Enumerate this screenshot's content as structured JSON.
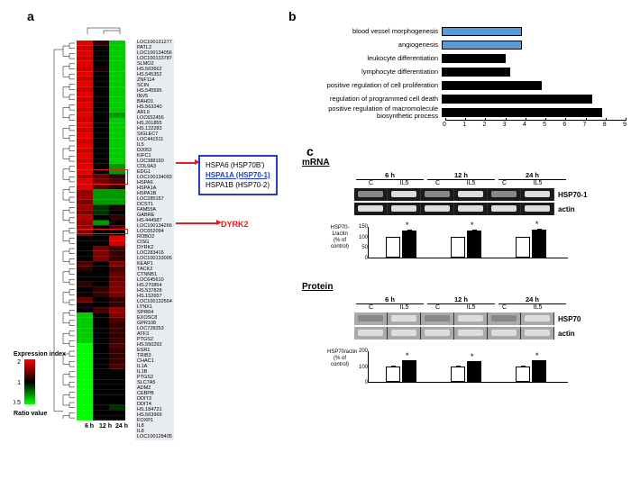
{
  "panelA": {
    "label": "a",
    "times": [
      "6 h",
      "12 h",
      "24 h"
    ],
    "legend": {
      "title": "Expression index",
      "max": 2,
      "mid": 1,
      "min": 0.5,
      "axis": "Ratio value"
    },
    "callout_hspa": [
      "HSPA6 (HSP70B')",
      "HSPA1A (HSP70-1)",
      "HSPA1B (HSP70-2)"
    ],
    "callout_dyrk": "DYRK2",
    "genes": [
      "LOC100131277",
      "PATL2",
      "LOC100134056",
      "LOC100133787",
      "SLMO2",
      "HS.563662",
      "HS.545352",
      "ZNF114",
      "SCIN",
      "HS.545595",
      "INV5",
      "BAHD1",
      "HS.563240",
      "ARL9",
      "LOC652456",
      "HS.201855",
      "HS.122283",
      "SIGLEC7",
      "LOC441511",
      "IL5",
      "D2053",
      "KIFC1",
      "LOC388160",
      "COL9A3",
      "EDG1",
      "LOC100134093",
      "HSPA6",
      "HSPA1A",
      "HSPA1B",
      "LOC285157",
      "DCST1",
      "FAM55A",
      "GABRE",
      "HS.444587",
      "LOC100134266",
      "LOC652094",
      "ROBO2",
      "CISG",
      "DYRK2",
      "LOC283416",
      "LOC100133005",
      "KEAP1",
      "TACK2",
      "CTNNB1",
      "LOC645610",
      "HS.270854",
      "HS.537828",
      "HS.152657",
      "LOC100132564",
      "LYNX1",
      "SPRR4",
      "EXOSC8",
      "GPR108",
      "LOC728253",
      "ATF3",
      "PTGS2",
      "HS.550292",
      "ESR1",
      "TRIB3",
      "CHAC1",
      "IL1A",
      "IL1B",
      "PTGS2",
      "SLC7A5",
      "ADM2",
      "CEBPB",
      "DDIT3",
      "DDIT4",
      "HS.184721",
      "HS.563969",
      "FOXP1",
      "IL8",
      "IL8",
      "LOC100128405"
    ],
    "heat_rows": [
      [
        1.9,
        1.2,
        0.6
      ],
      [
        1.8,
        1.0,
        0.6
      ],
      [
        1.9,
        1.0,
        0.6
      ],
      [
        1.8,
        1.0,
        0.6
      ],
      [
        1.9,
        1.0,
        0.6
      ],
      [
        1.8,
        1.1,
        0.6
      ],
      [
        1.9,
        1.0,
        0.6
      ],
      [
        1.8,
        1.0,
        0.6
      ],
      [
        1.9,
        1.0,
        0.6
      ],
      [
        1.8,
        1.0,
        0.6
      ],
      [
        1.9,
        1.0,
        0.6
      ],
      [
        1.8,
        1.0,
        0.6
      ],
      [
        1.9,
        1.0,
        0.6
      ],
      [
        1.8,
        1.0,
        0.6
      ],
      [
        1.9,
        1.0,
        0.7
      ],
      [
        1.8,
        1.0,
        0.6
      ],
      [
        1.9,
        1.0,
        0.6
      ],
      [
        1.8,
        1.0,
        0.6
      ],
      [
        1.9,
        1.0,
        0.6
      ],
      [
        1.8,
        1.0,
        0.6
      ],
      [
        1.9,
        1.0,
        0.6
      ],
      [
        1.8,
        1.0,
        0.6
      ],
      [
        1.9,
        1.0,
        0.6
      ],
      [
        1.8,
        1.0,
        0.6
      ],
      [
        1.9,
        1.0,
        0.7
      ],
      [
        1.9,
        1.0,
        0.7
      ],
      [
        1.7,
        1.4,
        1.2
      ],
      [
        1.9,
        1.5,
        1.3
      ],
      [
        1.9,
        1.4,
        1.2
      ],
      [
        1.6,
        0.7,
        0.7
      ],
      [
        1.6,
        0.7,
        0.7
      ],
      [
        1.5,
        0.7,
        0.7
      ],
      [
        1.6,
        0.9,
        1.1
      ],
      [
        1.5,
        0.9,
        1.0
      ],
      [
        1.7,
        1.0,
        1.2
      ],
      [
        1.6,
        0.7,
        1.0
      ],
      [
        1.6,
        1.0,
        1.3
      ],
      [
        1.5,
        1.0,
        1.0
      ],
      [
        1.0,
        1.0,
        1.9
      ],
      [
        1.0,
        1.0,
        1.8
      ],
      [
        1.0,
        1.5,
        1.2
      ],
      [
        1.0,
        1.5,
        1.2
      ],
      [
        1.0,
        1.5,
        1.2
      ],
      [
        1.3,
        1.0,
        1.5
      ],
      [
        1.2,
        1.0,
        1.3
      ],
      [
        1.0,
        1.0,
        1.4
      ],
      [
        1.0,
        1.0,
        1.4
      ],
      [
        1.2,
        1.0,
        1.5
      ],
      [
        1.0,
        1.2,
        1.5
      ],
      [
        1.0,
        1.2,
        1.5
      ],
      [
        1.4,
        1.0,
        1.2
      ],
      [
        1.1,
        1.0,
        1.2
      ],
      [
        1.0,
        1.3,
        1.6
      ],
      [
        0.6,
        1.0,
        1.5
      ],
      [
        0.6,
        1.0,
        1.3
      ],
      [
        0.6,
        1.0,
        1.2
      ],
      [
        0.6,
        1.0,
        1.2
      ],
      [
        0.6,
        1.0,
        1.2
      ],
      [
        0.6,
        1.0,
        1.2
      ],
      [
        0.5,
        1.0,
        1.3
      ],
      [
        0.5,
        1.0,
        1.2
      ],
      [
        0.5,
        1.0,
        1.2
      ],
      [
        0.5,
        1.0,
        1.2
      ],
      [
        0.5,
        1.0,
        1.3
      ],
      [
        0.5,
        1.0,
        1.0
      ],
      [
        0.5,
        1.0,
        1.0
      ],
      [
        0.5,
        1.0,
        1.0
      ],
      [
        0.5,
        1.0,
        1.0
      ],
      [
        0.5,
        1.0,
        1.0
      ],
      [
        0.5,
        1.0,
        1.0
      ],
      [
        0.5,
        1.0,
        1.0
      ],
      [
        0.5,
        1.0,
        0.9
      ],
      [
        0.5,
        1.0,
        1.0
      ],
      [
        0.5,
        1.0,
        1.0
      ]
    ],
    "scale": {
      "min": 0.5,
      "mid": 1.0,
      "max": 2.0,
      "min_color": "#00ff00",
      "mid_color": "#000000",
      "max_color": "#ff0000"
    }
  },
  "panelB": {
    "label": "b",
    "xmax": 9,
    "categories": [
      {
        "label": "blood vessel morphogenesis",
        "value": 4,
        "color": "#5b9bd5"
      },
      {
        "label": "angiogenesis",
        "value": 4,
        "color": "#5b9bd5"
      },
      {
        "label": "leukocyte  differentiation",
        "value": 3.2,
        "color": "#000000"
      },
      {
        "label": "lymphocyte  differentiation",
        "value": 3.4,
        "color": "#000000"
      },
      {
        "label": "positive regulation of cell proliferation",
        "value": 5,
        "color": "#000000"
      },
      {
        "label": "regulation of programmed cell death",
        "value": 7.5,
        "color": "#000000"
      },
      {
        "label": "positive regulation of macromolecule\nbiosynthetic  process",
        "value": 8,
        "color": "#000000"
      }
    ],
    "ticks": [
      0,
      1,
      2,
      3,
      4,
      5,
      6,
      7,
      8,
      9
    ]
  },
  "panelC": {
    "label": "c",
    "mrna": {
      "title": "mRNA",
      "timepoints": [
        "6 h",
        "12 h",
        "24 h"
      ],
      "conds": [
        "C",
        "IL5"
      ],
      "rows": [
        "HSP70-1",
        "actin"
      ],
      "chart": {
        "ylabel": "HSP70-1/actin\n(% of control)",
        "ymax": 150,
        "yticks": [
          0,
          50,
          100,
          150
        ],
        "bars": [
          {
            "tp": "6 h",
            "c": 100,
            "il5": 130,
            "c_err": 0,
            "il5_err": 8,
            "sig": true
          },
          {
            "tp": "12 h",
            "c": 100,
            "il5": 128,
            "c_err": 5,
            "il5_err": 8,
            "sig": true
          },
          {
            "tp": "24 h",
            "c": 100,
            "il5": 132,
            "c_err": 5,
            "il5_err": 8,
            "sig": true
          }
        ]
      }
    },
    "protein": {
      "title": "Protein",
      "timepoints": [
        "6 h",
        "12 h",
        "24 h"
      ],
      "conds": [
        "C",
        "IL5"
      ],
      "rows": [
        "HSP70",
        "actin"
      ],
      "chart": {
        "ylabel": "HSP70/actin\n(% of control)",
        "ymax": 200,
        "yticks": [
          0,
          100,
          200
        ],
        "bars": [
          {
            "tp": "6 h",
            "c": 100,
            "il5": 135,
            "c_err": 6,
            "il5_err": 10,
            "sig": true
          },
          {
            "tp": "12 h",
            "c": 100,
            "il5": 130,
            "c_err": 8,
            "il5_err": 10,
            "sig": true
          },
          {
            "tp": "24 h",
            "c": 100,
            "il5": 135,
            "c_err": 6,
            "il5_err": 10,
            "sig": true
          }
        ]
      }
    }
  }
}
